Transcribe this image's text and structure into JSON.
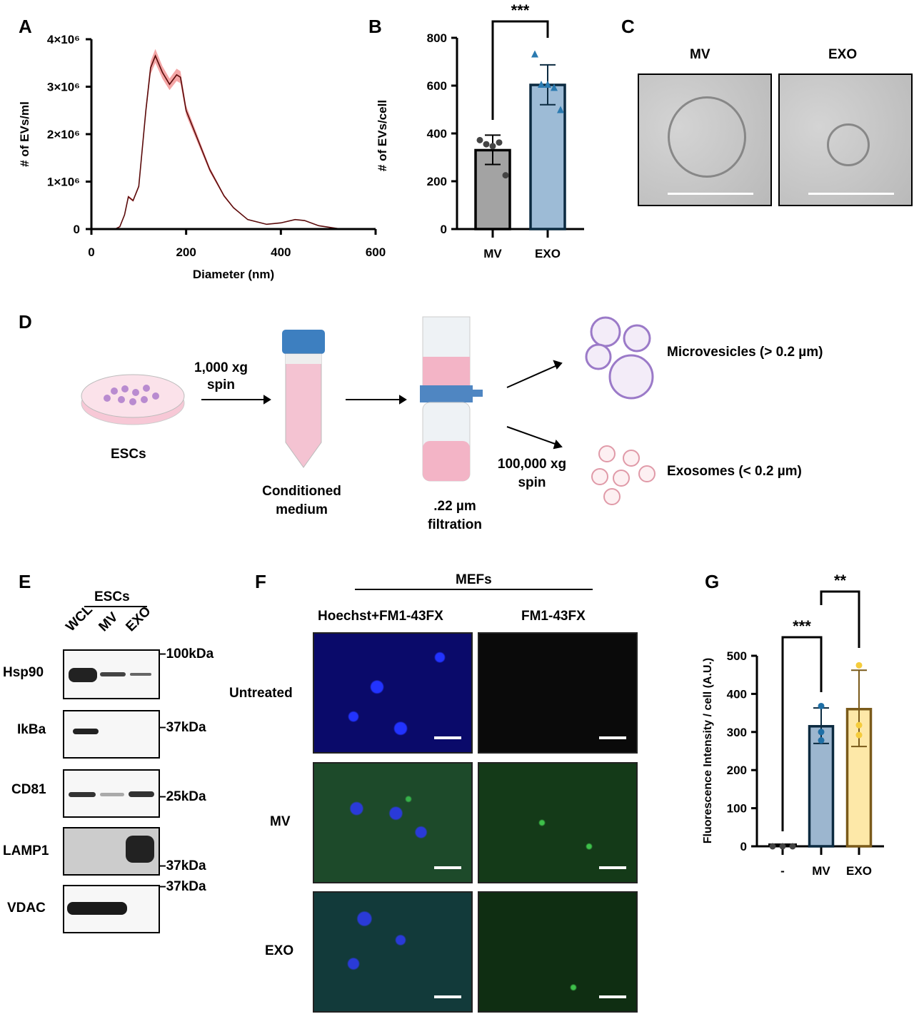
{
  "panels": {
    "A": "A",
    "B": "B",
    "C": "C",
    "D": "D",
    "E": "E",
    "F": "F",
    "G": "G"
  },
  "chart_data": [
    {
      "type": "line",
      "panel": "A",
      "xlabel": "Diameter (nm)",
      "ylabel": "# of EVs/ml",
      "xlim": [
        0,
        600
      ],
      "ylim": [
        0,
        4000000
      ],
      "xticks": [
        "0",
        "200",
        "400",
        "600"
      ],
      "yticks": [
        "0",
        "1×10⁶",
        "2×10⁶",
        "3×10⁶",
        "4×10⁶"
      ],
      "x": [
        50,
        60,
        70,
        78,
        88,
        100,
        115,
        125,
        135,
        150,
        165,
        180,
        188,
        200,
        220,
        250,
        280,
        300,
        330,
        370,
        400,
        430,
        450,
        480,
        520,
        600
      ],
      "y": [
        0,
        50000,
        300000,
        680000,
        600000,
        900000,
        2500000,
        3400000,
        3650000,
        3300000,
        3050000,
        3250000,
        3200000,
        2500000,
        2000000,
        1250000,
        700000,
        450000,
        200000,
        100000,
        130000,
        200000,
        180000,
        70000,
        10000,
        0
      ],
      "band_color": "#f08080",
      "line_color": "#5a0a0a"
    },
    {
      "type": "bar",
      "panel": "B",
      "ylabel": "# of EVs/cell",
      "ylim": [
        0,
        800
      ],
      "yticks": [
        "0",
        "200",
        "400",
        "600",
        "800"
      ],
      "categories": [
        "MV",
        "EXO"
      ],
      "values": [
        330,
        603
      ],
      "error_low": [
        270,
        520
      ],
      "error_high": [
        393,
        687
      ],
      "points": [
        [
          372,
          355,
          347,
          362,
          225
        ],
        [
          730,
          603,
          603,
          590,
          497
        ]
      ],
      "colors": [
        "#a3a3a3",
        "#9dbbd6"
      ],
      "point_colors": [
        "#444444",
        "#2a7ab0"
      ],
      "significance": [
        {
          "between": [
            "MV",
            "EXO"
          ],
          "label": "***"
        }
      ]
    },
    {
      "type": "bar",
      "panel": "G",
      "ylabel": "Fluorescence Intensity / cell (A.U.)",
      "ylim": [
        0,
        500
      ],
      "yticks": [
        "0",
        "100",
        "200",
        "300",
        "400",
        "500"
      ],
      "categories": [
        "-",
        "MV",
        "EXO"
      ],
      "values": [
        0,
        315,
        360
      ],
      "error_low": [
        0,
        270,
        262
      ],
      "error_high": [
        0,
        363,
        462
      ],
      "points": [
        [
          0,
          0,
          0
        ],
        [
          368,
          300,
          278
        ],
        [
          475,
          318,
          292
        ]
      ],
      "colors": [
        "#555555",
        "#9cb6cf",
        "#fde8a8"
      ],
      "edge_colors": [
        "#000000",
        "#0b2a40",
        "#7a5a1a"
      ],
      "point_colors": [
        "#444444",
        "#1f6fa6",
        "#f5cc3c"
      ],
      "significance": [
        {
          "between": [
            "-",
            "MV"
          ],
          "label": "***"
        },
        {
          "between": [
            "MV",
            "EXO"
          ],
          "label": "**"
        }
      ]
    }
  ],
  "panelC": {
    "labels": [
      "MV",
      "EXO"
    ]
  },
  "panelD": {
    "esc": "ESCs",
    "spin1": "1,000 xg\nspin",
    "conditioned": "Conditioned\nmedium",
    "filtration": ".22 µm\nfiltration",
    "spin2": "100,000 xg\nspin",
    "microvesicles": "Microvesicles (> 0.2 µm)",
    "exosomes": "Exosomes (< 0.2 µm)"
  },
  "panelE": {
    "group": "ESCs",
    "lanes": [
      "WCL",
      "MV",
      "EXO"
    ],
    "proteins": [
      "Hsp90",
      "IkBa",
      "CD81",
      "LAMP1",
      "VDAC"
    ],
    "markers": [
      "100kDa",
      "37kDa",
      "25kDa",
      "37kDa",
      "37kDa"
    ]
  },
  "panelF": {
    "group": "MEFs",
    "columns": [
      "Hoechst+FM1-43FX",
      "FM1-43FX"
    ],
    "rows": [
      "Untreated",
      "MV",
      "EXO"
    ]
  }
}
